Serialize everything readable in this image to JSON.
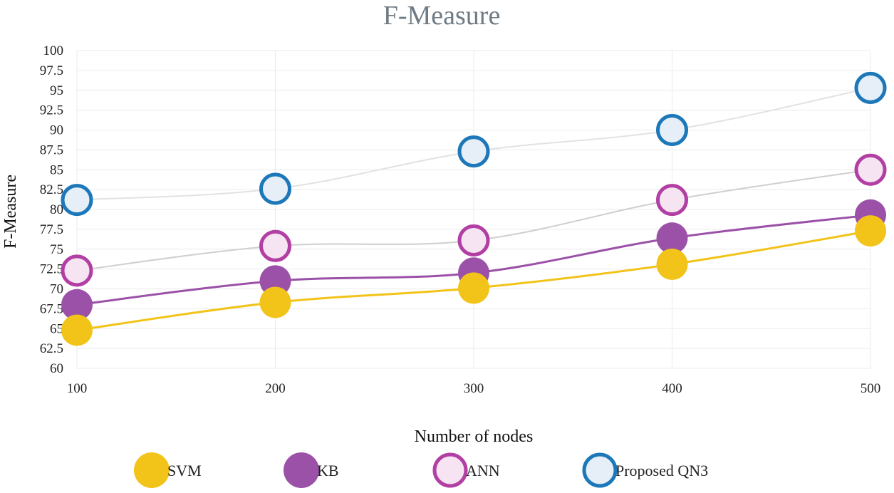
{
  "chart_data": {
    "type": "line",
    "title": "F-Measure",
    "xlabel": "Number of nodes",
    "ylabel": "F-Measure",
    "x": [
      100,
      200,
      300,
      400,
      500
    ],
    "ylim": [
      60,
      100
    ],
    "yticks": [
      "60",
      "62.5",
      "65",
      "67.5",
      "70",
      "72.5",
      "75",
      "77.5",
      "80",
      "82.5",
      "85",
      "87.5",
      "90",
      "92.5",
      "95",
      "97.5",
      "100"
    ],
    "grid": true,
    "legend_position": "bottom",
    "series": [
      {
        "name": "SVM",
        "values": [
          64.8,
          68.3,
          70.1,
          73.1,
          77.3
        ],
        "color": "#f2c318",
        "line_color": "#f2c318",
        "fill": "#f2c318",
        "hollow": false
      },
      {
        "name": "KB",
        "values": [
          68.0,
          71.0,
          72.0,
          76.4,
          79.3
        ],
        "color": "#9b51a8",
        "line_color": "#9b51a8",
        "fill": "#9b51a8",
        "hollow": false
      },
      {
        "name": "ANN",
        "values": [
          72.3,
          75.4,
          76.1,
          81.2,
          85.0
        ],
        "color": "#b23fa3",
        "line_color": "#cfcfcf",
        "fill": "#f7e4f2",
        "hollow": true
      },
      {
        "name": "Proposed QN3",
        "values": [
          81.2,
          82.6,
          87.3,
          90.0,
          95.3
        ],
        "color": "#1c78b8",
        "line_color": "#e2e2e2",
        "fill": "#e6eef8",
        "hollow": true
      }
    ]
  }
}
